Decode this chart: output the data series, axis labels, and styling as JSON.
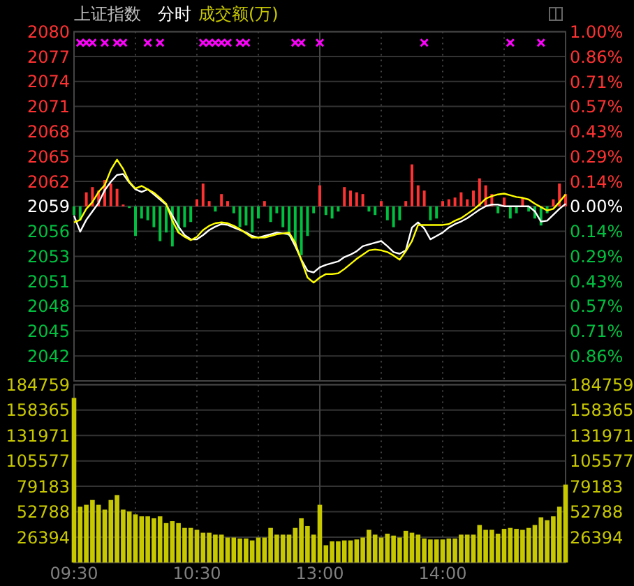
{
  "chart_data": [
    {
      "type": "line",
      "title": "上证指数",
      "subtitle": "分时",
      "annotations": [
        "成交额(万)"
      ],
      "grid": true,
      "categories": [
        null,
        null,
        null,
        null,
        null,
        null,
        null,
        null,
        null,
        null,
        null,
        null,
        null,
        null,
        null,
        null,
        null,
        null,
        null,
        null,
        null,
        null,
        null,
        null,
        null,
        null,
        null,
        null,
        null,
        null,
        null,
        null,
        null,
        null,
        null,
        null,
        null,
        null,
        null,
        null,
        null,
        null,
        null,
        null,
        null,
        null,
        null,
        null,
        null,
        null,
        null,
        null,
        null,
        null,
        null,
        null,
        null,
        null,
        null,
        null,
        null,
        null,
        null,
        null,
        null,
        null,
        null,
        null,
        null,
        null,
        null,
        null,
        null,
        null,
        null,
        null,
        null,
        null,
        null,
        null,
        null
      ],
      "ylim": [
        2038.8,
        2080
      ],
      "yticks": [
        2080,
        {
          "value": 2077.06,
          "label": "2077"
        },
        {
          "value": 2074.12,
          "label": "2074"
        },
        {
          "value": 2071.18,
          "label": "2071"
        },
        {
          "value": 2068.24,
          "label": "2068"
        },
        {
          "value": 2065.3,
          "label": "2065"
        },
        {
          "value": 2062.34,
          "label": "2062"
        },
        {
          "value": 2059.4,
          "label": "2059"
        },
        {
          "value": 2056.46,
          "label": "2056"
        },
        {
          "value": 2053.5,
          "label": "2053"
        },
        {
          "value": 2050.58,
          "label": "2051"
        },
        {
          "value": 2047.64,
          "label": "2048"
        },
        {
          "value": 2044.7,
          "label": "2045"
        },
        {
          "value": 2041.74,
          "label": "2042"
        }
      ],
      "y2lim": [
        -1,
        1
      ],
      "y2ticks": [
        {
          "value": 1,
          "label": "1.00%"
        },
        {
          "value": 0.857,
          "label": "0.86%"
        },
        {
          "value": 0.714,
          "label": "0.71%"
        },
        {
          "value": 0.571,
          "label": "0.57%"
        },
        {
          "value": 0.429,
          "label": "0.43%"
        },
        {
          "value": 0.286,
          "label": "0.29%"
        },
        {
          "value": 0.143,
          "label": "0.14%"
        },
        {
          "value": 0,
          "label": "0.00%"
        },
        {
          "value": -0.143,
          "label": "0.14%"
        },
        {
          "value": -0.286,
          "label": "0.29%"
        },
        {
          "value": -0.429,
          "label": "0.43%"
        },
        {
          "value": -0.571,
          "label": "0.57%"
        },
        {
          "value": -0.714,
          "label": "0.71%"
        },
        {
          "value": -0.857,
          "label": "0.86%"
        }
      ],
      "series": [
        {
          "type": "bar",
          "axis": "y2",
          "values": [
            -0.05,
            -0.08,
            0.08,
            0.11,
            0.09,
            0.15,
            0.13,
            0.1,
            0.01,
            -0.01,
            -0.17,
            -0.07,
            -0.08,
            -0.12,
            -0.2,
            -0.15,
            -0.23,
            -0.15,
            -0.12,
            -0.09,
            0.04,
            0.13,
            0.03,
            -0.03,
            0.07,
            0.03,
            -0.04,
            -0.12,
            -0.11,
            -0.15,
            -0.07,
            0.03,
            -0.09,
            -0.04,
            -0.12,
            -0.17,
            -0.23,
            -0.28,
            -0.17,
            -0.04,
            0.12,
            -0.05,
            -0.07,
            -0.03,
            0.11,
            0.09,
            0.08,
            0.07,
            -0.03,
            -0.05,
            0.03,
            -0.08,
            -0.12,
            -0.08,
            0.03,
            0.24,
            0.12,
            0.09,
            -0.08,
            -0.07,
            0.03,
            0.04,
            0.05,
            0.08,
            0.04,
            0.09,
            0.16,
            0.12,
            0.07,
            -0.04,
            0.05,
            -0.07,
            -0.04,
            0.05,
            -0.03,
            -0.07,
            -0.11,
            -0.04,
            0.04,
            0.13,
            0.07
          ],
          "colors": [
            "#00c040",
            "#00c040",
            "#ff3232",
            "#ff3232",
            "#ff3232",
            "#ff3232",
            "#ff3232",
            "#ff3232",
            "#ff3232",
            "#00c040",
            "#00c040",
            "#00c040",
            "#00c040",
            "#00c040",
            "#00c040",
            "#00c040",
            "#00c040",
            "#00c040",
            "#00c040",
            "#00c040",
            "#ff3232",
            "#ff3232",
            "#ff3232",
            "#00c040",
            "#ff3232",
            "#ff3232",
            "#00c040",
            "#00c040",
            "#00c040",
            "#00c040",
            "#00c040",
            "#ff3232",
            "#00c040",
            "#00c040",
            "#00c040",
            "#00c040",
            "#00c040",
            "#00c040",
            "#00c040",
            "#00c040",
            "#ff3232",
            "#00c040",
            "#00c040",
            "#00c040",
            "#ff3232",
            "#ff3232",
            "#ff3232",
            "#ff3232",
            "#00c040",
            "#00c040",
            "#ff3232",
            "#00c040",
            "#00c040",
            "#00c040",
            "#ff3232",
            "#ff3232",
            "#ff3232",
            "#ff3232",
            "#00c040",
            "#00c040",
            "#ff3232",
            "#ff3232",
            "#ff3232",
            "#ff3232",
            "#ff3232",
            "#ff3232",
            "#ff3232",
            "#ff3232",
            "#ff3232",
            "#00c040",
            "#ff3232",
            "#00c040",
            "#00c040",
            "#ff3232",
            "#00c040",
            "#00c040",
            "#00c040",
            "#00c040",
            "#ff3232",
            "#ff3232",
            "#ff3232"
          ]
        },
        {
          "color": "#ffffff",
          "values": [
            2058.3,
            2056.4,
            2057.8,
            2058.8,
            2059.8,
            2061.3,
            2062.3,
            2063.1,
            2063.2,
            2062.2,
            2061.4,
            2061.1,
            2061.4,
            2060.8,
            2060.2,
            2059.6,
            2058.3,
            2057.0,
            2056.0,
            2055.5,
            2055.5,
            2056.0,
            2056.6,
            2057.0,
            2057.3,
            2057.2,
            2056.9,
            2056.6,
            2056.3,
            2055.9,
            2055.7,
            2055.9,
            2056.1,
            2056.3,
            2056.2,
            2056.1,
            2054.7,
            2053.1,
            2051.8,
            2051.6,
            2052.2,
            2052.5,
            2052.7,
            2052.9,
            2053.4,
            2053.7,
            2054.1,
            2054.7,
            2054.9,
            2055.1,
            2055.3,
            2054.7,
            2054.0,
            2053.8,
            2054.2,
            2056.9,
            2057.5,
            2056.8,
            2055.5,
            2055.9,
            2056.3,
            2056.9,
            2057.3,
            2057.6,
            2058.0,
            2058.5,
            2059.0,
            2059.4,
            2059.6,
            2059.6,
            2059.4,
            2059.4,
            2059.4,
            2059.4,
            2059.4,
            2058.8,
            2057.6,
            2057.7,
            2058.4,
            2059.1,
            2059.7
          ]
        },
        {
          "color": "#ffff00",
          "values": [
            2057.5,
            2057.8,
            2059.1,
            2059.9,
            2061.1,
            2061.9,
            2063.7,
            2064.9,
            2063.8,
            2062.3,
            2061.5,
            2061.8,
            2061.4,
            2061.0,
            2060.4,
            2059.7,
            2057.7,
            2056.3,
            2055.8,
            2055.4,
            2055.8,
            2056.6,
            2057.1,
            2057.4,
            2057.5,
            2057.4,
            2057.1,
            2056.7,
            2056.2,
            2055.7,
            2055.7,
            2055.7,
            2055.9,
            2056.1,
            2056.2,
            2056.3,
            2055.1,
            2053.0,
            2051.0,
            2050.4,
            2051.0,
            2051.4,
            2051.4,
            2051.5,
            2052.0,
            2052.6,
            2053.2,
            2053.7,
            2054.2,
            2054.3,
            2054.2,
            2054.0,
            2053.6,
            2053.1,
            2054.1,
            2055.3,
            2057.2,
            2057.2,
            2057.2,
            2057.2,
            2057.2,
            2057.3,
            2057.7,
            2058.0,
            2058.5,
            2059.0,
            2059.6,
            2060.3,
            2060.6,
            2060.8,
            2060.9,
            2060.7,
            2060.5,
            2060.4,
            2060.2,
            2059.7,
            2059.3,
            2058.9,
            2059.1,
            2059.9,
            2060.8
          ]
        },
        {
          "type": "scatter",
          "marker": "cross",
          "color": "#ff00ff",
          "values": [
            null,
            2078.7,
            2078.7,
            2078.7,
            null,
            2078.7,
            null,
            2078.7,
            2078.7,
            null,
            null,
            null,
            2078.7,
            null,
            2078.7,
            null,
            null,
            null,
            null,
            null,
            null,
            2078.7,
            2078.7,
            2078.7,
            2078.7,
            2078.7,
            null,
            2078.7,
            2078.7,
            null,
            null,
            null,
            null,
            null,
            null,
            null,
            2078.7,
            2078.7,
            null,
            null,
            2078.7,
            null,
            null,
            null,
            null,
            null,
            null,
            null,
            null,
            null,
            null,
            null,
            null,
            null,
            null,
            null,
            null,
            2078.7,
            null,
            null,
            null,
            null,
            null,
            null,
            null,
            null,
            null,
            null,
            null,
            null,
            null,
            2078.7,
            null,
            null,
            null,
            null,
            2078.7,
            null,
            null,
            null,
            null
          ]
        }
      ]
    },
    {
      "type": "bar",
      "color": "#c8c800",
      "grid": true,
      "categories": [
        "09:30",
        null,
        null,
        null,
        null,
        null,
        null,
        null,
        null,
        null,
        null,
        null,
        null,
        null,
        null,
        null,
        null,
        null,
        null,
        null,
        "10:30",
        null,
        null,
        null,
        null,
        null,
        null,
        null,
        null,
        null,
        null,
        null,
        null,
        null,
        null,
        null,
        null,
        null,
        null,
        null,
        "13:00",
        null,
        null,
        null,
        null,
        null,
        null,
        null,
        null,
        null,
        null,
        null,
        null,
        null,
        null,
        null,
        null,
        null,
        null,
        null,
        "14:00",
        null,
        null,
        null,
        null,
        null,
        null,
        null,
        null,
        null,
        null,
        null,
        null,
        null,
        null,
        null,
        null,
        null,
        null,
        null,
        null
      ],
      "ylim": [
        0,
        184759
      ],
      "yticks": [
        26394,
        52788,
        79183,
        105577,
        131971,
        158365,
        184759
      ],
      "y2lim": [
        0,
        184759
      ],
      "y2ticks": [
        26394,
        52788,
        79183,
        105577,
        131971,
        158365,
        184759
      ],
      "values": [
        171000,
        58000,
        60000,
        65000,
        60000,
        55000,
        65000,
        70000,
        55000,
        53000,
        50000,
        48000,
        48000,
        46000,
        48000,
        41000,
        43000,
        41000,
        36000,
        36000,
        34000,
        31000,
        31000,
        29000,
        29000,
        26000,
        26000,
        25000,
        25000,
        23000,
        26000,
        26000,
        36000,
        29000,
        29000,
        29000,
        36000,
        46000,
        38000,
        29000,
        60000,
        18000,
        22000,
        22000,
        23000,
        23000,
        24000,
        26000,
        34000,
        29000,
        26000,
        30000,
        28000,
        26000,
        33000,
        31000,
        29000,
        25000,
        24000,
        24000,
        24000,
        25000,
        25000,
        29000,
        29000,
        29000,
        39000,
        34000,
        34000,
        30000,
        35000,
        36000,
        35000,
        34000,
        36000,
        39000,
        47000,
        44000,
        48000,
        58000,
        81000
      ]
    }
  ]
}
